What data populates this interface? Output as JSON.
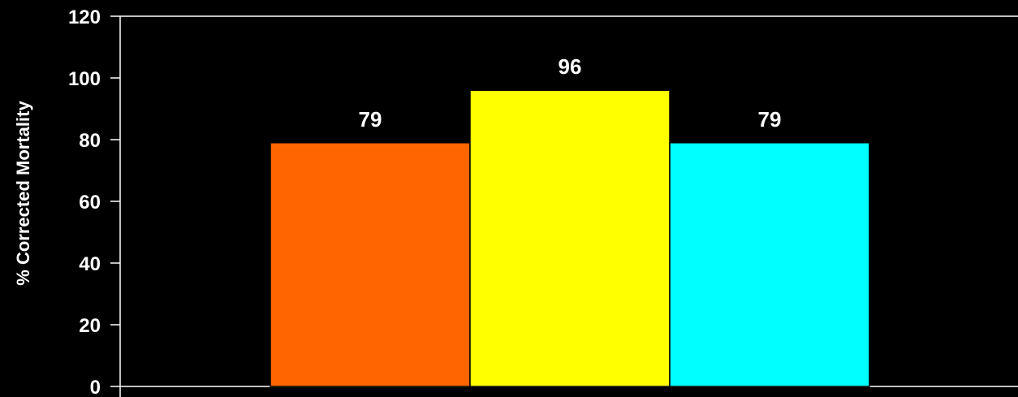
{
  "chart_data": {
    "type": "bar",
    "categories": [
      "",
      "",
      ""
    ],
    "values": [
      79,
      96,
      79
    ],
    "data_labels": [
      "79",
      "96",
      "79"
    ],
    "colors": [
      "#ff6600",
      "#ffff00",
      "#00ffff"
    ],
    "title": "",
    "xlabel": "",
    "ylabel": "% Corrected Mortality",
    "ylim": [
      0,
      120
    ],
    "yticks": [
      "0",
      "20",
      "40",
      "60",
      "80",
      "100",
      "120"
    ],
    "background": "#000000",
    "axis_color": "#ffffff",
    "grid": false
  }
}
